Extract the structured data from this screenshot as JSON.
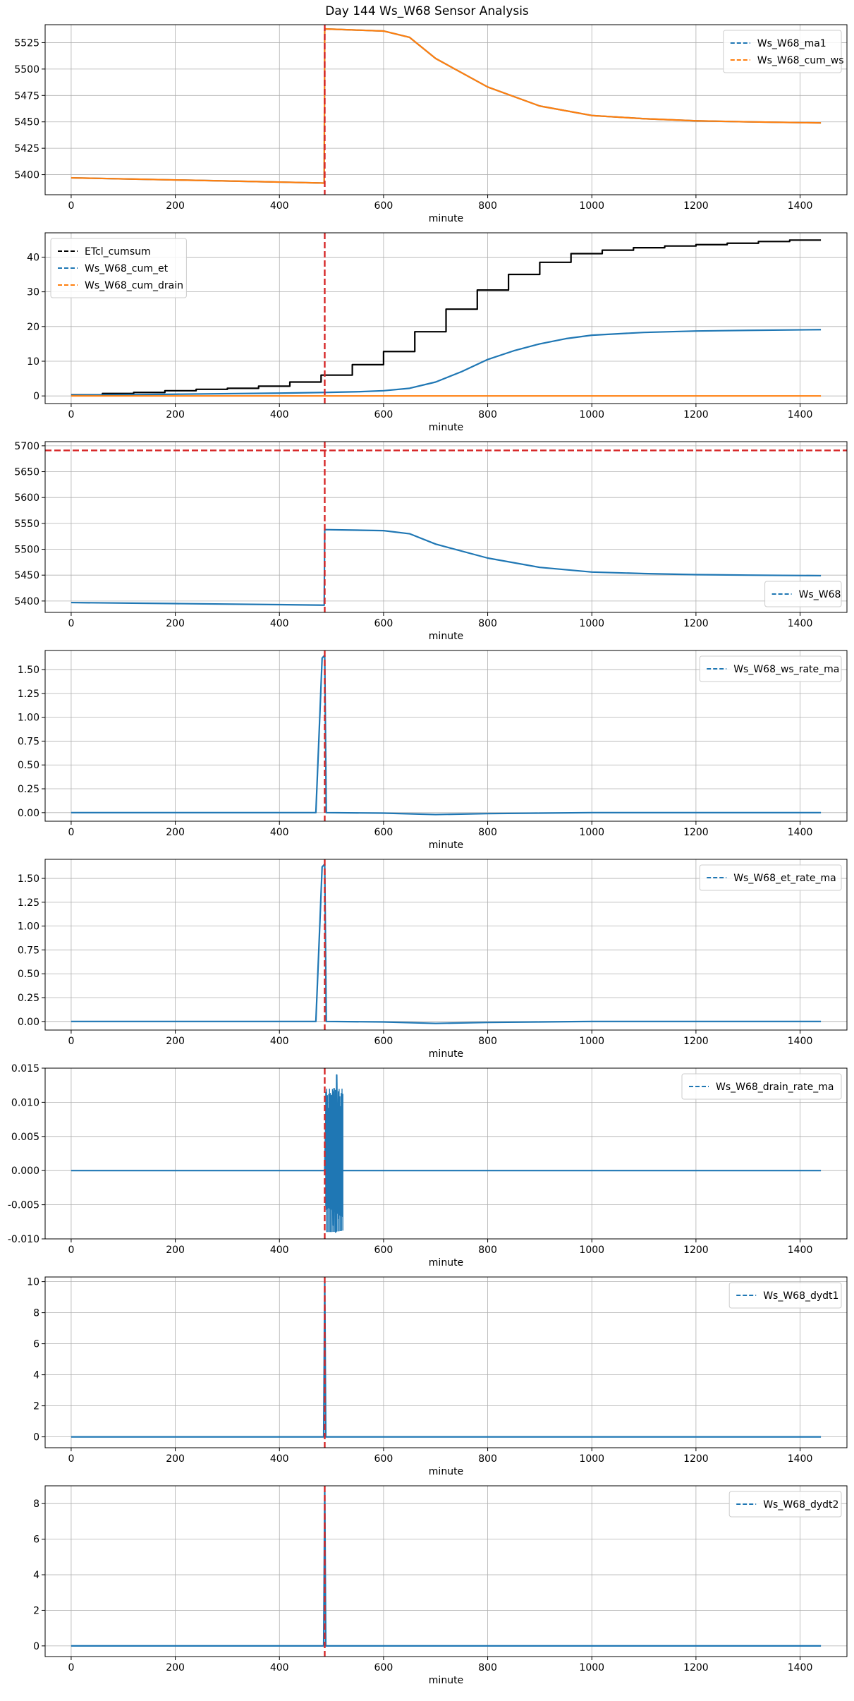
{
  "figure": {
    "title": "Day 144 Ws_W68 Sensor Analysis"
  },
  "chart_data": [
    {
      "type": "line",
      "xlabel": "minute",
      "xlim": [
        -50,
        1490
      ],
      "ylim": [
        5381,
        5542
      ],
      "xticks": [
        0,
        200,
        400,
        600,
        800,
        1000,
        1200,
        1400
      ],
      "yticks": [
        5400,
        5425,
        5450,
        5475,
        5500,
        5525
      ],
      "tick_labels": [
        "5400",
        "5425",
        "5450",
        "5475",
        "5500",
        "5525"
      ],
      "grid": true,
      "legend_position": "top-right",
      "legend": [
        "Ws_W68_ma1",
        "Ws_W68_cum_ws"
      ],
      "vline": {
        "x": 487,
        "color": "#d62728"
      },
      "series": [
        {
          "name": "Ws_W68_ma1",
          "color": "#1f77b4",
          "style": "dashed",
          "points": [
            [
              0,
              5397
            ],
            [
              200,
              5395
            ],
            [
              400,
              5393
            ],
            [
              486,
              5392
            ],
            [
              487,
              5538
            ],
            [
              600,
              5536
            ],
            [
              650,
              5530
            ],
            [
              700,
              5510
            ],
            [
              800,
              5483
            ],
            [
              900,
              5465
            ],
            [
              1000,
              5456
            ],
            [
              1100,
              5453
            ],
            [
              1200,
              5451
            ],
            [
              1300,
              5450
            ],
            [
              1440,
              5449
            ]
          ]
        },
        {
          "name": "Ws_W68_cum_ws",
          "color": "#ff7f0e",
          "style": "dashed",
          "points": [
            [
              0,
              5397
            ],
            [
              200,
              5395
            ],
            [
              400,
              5393
            ],
            [
              486,
              5392
            ],
            [
              487,
              5538
            ],
            [
              600,
              5536
            ],
            [
              650,
              5530
            ],
            [
              700,
              5510
            ],
            [
              800,
              5483
            ],
            [
              900,
              5465
            ],
            [
              1000,
              5456
            ],
            [
              1100,
              5453
            ],
            [
              1200,
              5451
            ],
            [
              1300,
              5450
            ],
            [
              1440,
              5449
            ]
          ]
        }
      ]
    },
    {
      "type": "line",
      "xlabel": "minute",
      "xlim": [
        -50,
        1490
      ],
      "ylim": [
        -2.2,
        47
      ],
      "xticks": [
        0,
        200,
        400,
        600,
        800,
        1000,
        1200,
        1400
      ],
      "yticks": [
        0,
        10,
        20,
        30,
        40
      ],
      "tick_labels": [
        "0",
        "10",
        "20",
        "30",
        "40"
      ],
      "grid": true,
      "legend_position": "top-left",
      "legend": [
        "ETcl_cumsum",
        "Ws_W68_cum_et",
        "Ws_W68_cum_drain"
      ],
      "vline": {
        "x": 487,
        "color": "#d62728"
      },
      "series": [
        {
          "name": "ETcl_cumsum",
          "color": "#000000",
          "style": "dashed",
          "steps": [
            [
              0,
              0.3
            ],
            [
              60,
              0.7
            ],
            [
              120,
              1.0
            ],
            [
              180,
              1.5
            ],
            [
              240,
              1.9
            ],
            [
              300,
              2.2
            ],
            [
              360,
              2.8
            ],
            [
              420,
              4.0
            ],
            [
              480,
              6.0
            ],
            [
              540,
              9.0
            ],
            [
              600,
              12.8
            ],
            [
              660,
              18.5
            ],
            [
              720,
              25.0
            ],
            [
              780,
              30.5
            ],
            [
              840,
              35.0
            ],
            [
              900,
              38.5
            ],
            [
              960,
              41.0
            ],
            [
              1020,
              42.0
            ],
            [
              1080,
              42.7
            ],
            [
              1140,
              43.2
            ],
            [
              1200,
              43.6
            ],
            [
              1260,
              44.0
            ],
            [
              1320,
              44.5
            ],
            [
              1380,
              44.9
            ],
            [
              1440,
              44.9
            ]
          ]
        },
        {
          "name": "Ws_W68_cum_et",
          "color": "#1f77b4",
          "style": "dashed",
          "points": [
            [
              0,
              0.2
            ],
            [
              200,
              0.5
            ],
            [
              400,
              0.8
            ],
            [
              487,
              1.0
            ],
            [
              550,
              1.2
            ],
            [
              600,
              1.5
            ],
            [
              650,
              2.2
            ],
            [
              700,
              4.0
            ],
            [
              750,
              7.0
            ],
            [
              800,
              10.5
            ],
            [
              850,
              13.0
            ],
            [
              900,
              15.0
            ],
            [
              950,
              16.5
            ],
            [
              1000,
              17.5
            ],
            [
              1100,
              18.3
            ],
            [
              1200,
              18.7
            ],
            [
              1300,
              18.9
            ],
            [
              1440,
              19.1
            ]
          ]
        },
        {
          "name": "Ws_W68_cum_drain",
          "color": "#ff7f0e",
          "style": "dashed",
          "points": [
            [
              0,
              0
            ],
            [
              1440,
              0
            ]
          ]
        }
      ]
    },
    {
      "type": "line",
      "xlabel": "minute",
      "xlim": [
        -50,
        1490
      ],
      "ylim": [
        5378,
        5708
      ],
      "xticks": [
        0,
        200,
        400,
        600,
        800,
        1000,
        1200,
        1400
      ],
      "yticks": [
        5400,
        5450,
        5500,
        5550,
        5600,
        5650,
        5700
      ],
      "tick_labels": [
        "5400",
        "5450",
        "5500",
        "5550",
        "5600",
        "5650",
        "5700"
      ],
      "grid": true,
      "legend_position": "bottom-right",
      "legend": [
        "Ws_W68"
      ],
      "vline": {
        "x": 487,
        "color": "#d62728"
      },
      "hline": {
        "y": 5691,
        "color": "#d62728"
      },
      "series": [
        {
          "name": "Ws_W68",
          "color": "#1f77b4",
          "style": "dashed",
          "points": [
            [
              0,
              5397
            ],
            [
              200,
              5395
            ],
            [
              400,
              5393
            ],
            [
              486,
              5392
            ],
            [
              487,
              5538
            ],
            [
              600,
              5536
            ],
            [
              650,
              5530
            ],
            [
              700,
              5510
            ],
            [
              800,
              5483
            ],
            [
              900,
              5465
            ],
            [
              1000,
              5456
            ],
            [
              1100,
              5453
            ],
            [
              1200,
              5451
            ],
            [
              1300,
              5450
            ],
            [
              1440,
              5449
            ]
          ]
        }
      ]
    },
    {
      "type": "line",
      "xlabel": "minute",
      "xlim": [
        -50,
        1490
      ],
      "ylim": [
        -0.09,
        1.7
      ],
      "xticks": [
        0,
        200,
        400,
        600,
        800,
        1000,
        1200,
        1400
      ],
      "yticks": [
        0,
        0.25,
        0.5,
        0.75,
        1.0,
        1.25,
        1.5
      ],
      "tick_labels": [
        "0.00",
        "0.25",
        "0.50",
        "0.75",
        "1.00",
        "1.25",
        "1.50"
      ],
      "grid": true,
      "legend_position": "top-right",
      "legend": [
        "Ws_W68_ws_rate_ma"
      ],
      "vline": {
        "x": 487,
        "color": "#d62728"
      },
      "series": [
        {
          "name": "Ws_W68_ws_rate_ma",
          "color": "#1f77b4",
          "style": "dashed",
          "points": [
            [
              0,
              0
            ],
            [
              470,
              0
            ],
            [
              476,
              0.8
            ],
            [
              482,
              1.62
            ],
            [
              487,
              1.65
            ],
            [
              490,
              0
            ],
            [
              600,
              -0.005
            ],
            [
              700,
              -0.02
            ],
            [
              800,
              -0.01
            ],
            [
              900,
              -0.005
            ],
            [
              1000,
              0
            ],
            [
              1440,
              0
            ]
          ]
        }
      ]
    },
    {
      "type": "line",
      "xlabel": "minute",
      "xlim": [
        -50,
        1490
      ],
      "ylim": [
        -0.09,
        1.7
      ],
      "xticks": [
        0,
        200,
        400,
        600,
        800,
        1000,
        1200,
        1400
      ],
      "yticks": [
        0,
        0.25,
        0.5,
        0.75,
        1.0,
        1.25,
        1.5
      ],
      "tick_labels": [
        "0.00",
        "0.25",
        "0.50",
        "0.75",
        "1.00",
        "1.25",
        "1.50"
      ],
      "grid": true,
      "legend_position": "top-right",
      "legend": [
        "Ws_W68_et_rate_ma"
      ],
      "vline": {
        "x": 487,
        "color": "#d62728"
      },
      "series": [
        {
          "name": "Ws_W68_et_rate_ma",
          "color": "#1f77b4",
          "style": "dashed",
          "points": [
            [
              0,
              0
            ],
            [
              470,
              0
            ],
            [
              476,
              0.8
            ],
            [
              482,
              1.62
            ],
            [
              487,
              1.65
            ],
            [
              490,
              0
            ],
            [
              600,
              -0.005
            ],
            [
              700,
              -0.02
            ],
            [
              800,
              -0.01
            ],
            [
              900,
              -0.005
            ],
            [
              1000,
              0
            ],
            [
              1440,
              0
            ]
          ]
        }
      ]
    },
    {
      "type": "line",
      "xlabel": "minute",
      "xlim": [
        -50,
        1490
      ],
      "ylim": [
        -0.01,
        0.015
      ],
      "xticks": [
        0,
        200,
        400,
        600,
        800,
        1000,
        1200,
        1400
      ],
      "yticks": [
        -0.01,
        -0.005,
        0.0,
        0.005,
        0.01,
        0.015
      ],
      "tick_labels": [
        "-0.010",
        "-0.005",
        "0.000",
        "0.005",
        "0.010",
        "0.015"
      ],
      "grid": true,
      "legend_position": "top-right",
      "legend": [
        "Ws_W68_drain_rate_ma"
      ],
      "vline": {
        "x": 487,
        "color": "#d62728"
      },
      "series": [
        {
          "name": "Ws_W68_drain_rate_ma",
          "color": "#1f77b4",
          "style": "dashed",
          "points": [
            [
              0,
              0
            ],
            [
              487,
              0
            ],
            [
              490,
              0.01
            ],
            [
              492,
              -0.002
            ],
            [
              495,
              0.009
            ],
            [
              498,
              -0.004
            ],
            [
              500,
              0.011
            ],
            [
              503,
              -0.008
            ],
            [
              505,
              0.012
            ],
            [
              508,
              -0.009
            ],
            [
              510,
              0.014
            ],
            [
              513,
              -0.007
            ],
            [
              515,
              0.01
            ],
            [
              518,
              -0.003
            ],
            [
              520,
              0
            ],
            [
              1440,
              0
            ]
          ]
        }
      ]
    },
    {
      "type": "line",
      "xlabel": "minute",
      "xlim": [
        -50,
        1490
      ],
      "ylim": [
        -0.7,
        10.3
      ],
      "xticks": [
        0,
        200,
        400,
        600,
        800,
        1000,
        1200,
        1400
      ],
      "yticks": [
        0,
        2,
        4,
        6,
        8,
        10
      ],
      "tick_labels": [
        "0",
        "2",
        "4",
        "6",
        "8",
        "10"
      ],
      "grid": true,
      "legend_position": "top-right",
      "legend": [
        "Ws_W68_dydt1"
      ],
      "vline": {
        "x": 487,
        "color": "#d62728"
      },
      "series": [
        {
          "name": "Ws_W68_dydt1",
          "color": "#1f77b4",
          "style": "dashed",
          "points": [
            [
              0,
              0
            ],
            [
              485,
              0
            ],
            [
              487,
              10.0
            ],
            [
              489,
              0
            ],
            [
              1440,
              0
            ]
          ]
        }
      ]
    },
    {
      "type": "line",
      "xlabel": "minute",
      "xlim": [
        -50,
        1490
      ],
      "ylim": [
        -0.6,
        9.0
      ],
      "xticks": [
        0,
        200,
        400,
        600,
        800,
        1000,
        1200,
        1400
      ],
      "yticks": [
        0,
        2,
        4,
        6,
        8
      ],
      "tick_labels": [
        "0",
        "2",
        "4",
        "6",
        "8"
      ],
      "grid": true,
      "legend_position": "top-right",
      "legend": [
        "Ws_W68_dydt2"
      ],
      "vline": {
        "x": 487,
        "color": "#d62728"
      },
      "series": [
        {
          "name": "Ws_W68_dydt2",
          "color": "#1f77b4",
          "style": "dashed",
          "points": [
            [
              0,
              0
            ],
            [
              485,
              0
            ],
            [
              487,
              8.7
            ],
            [
              489,
              0
            ],
            [
              1440,
              0
            ]
          ]
        }
      ]
    }
  ]
}
